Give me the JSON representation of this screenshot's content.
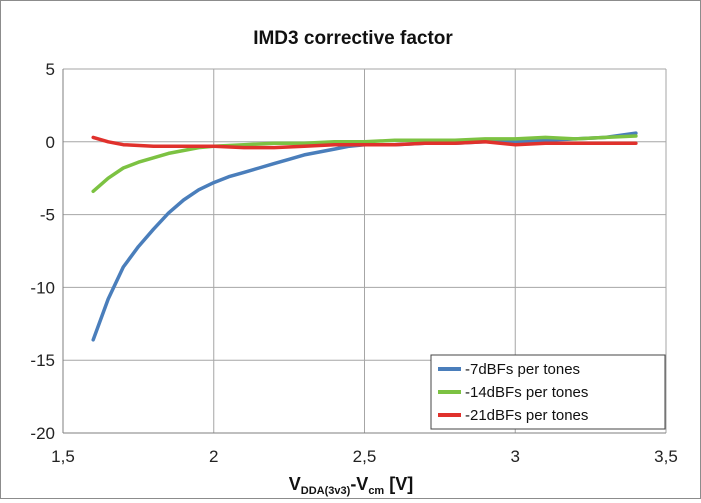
{
  "chart_data": {
    "type": "line",
    "title": "IMD3  corrective factor",
    "xlabel": {
      "main": "V",
      "sub1": "DDA(3v3)",
      "mid": "-V",
      "sub2": "cm",
      "unit": " [V]"
    },
    "ylabel": "",
    "xlim": [
      1.5,
      3.5
    ],
    "ylim": [
      -20,
      5
    ],
    "x_ticks": [
      1.5,
      2,
      2.5,
      3,
      3.5
    ],
    "x_tick_labels": [
      "1,5",
      "2",
      "2,5",
      "3",
      "3,5"
    ],
    "y_ticks": [
      5,
      0,
      -5,
      -10,
      -15,
      -20
    ],
    "y_tick_labels": [
      "5",
      "0",
      "-5",
      "-10",
      "-15",
      "-20"
    ],
    "grid": true,
    "legend_position": "bottom-right",
    "series": [
      {
        "name": "-7dBFs per tones",
        "color": "#4a7ebb",
        "x": [
          1.6,
          1.65,
          1.7,
          1.75,
          1.8,
          1.85,
          1.9,
          1.95,
          2.0,
          2.05,
          2.1,
          2.15,
          2.2,
          2.25,
          2.3,
          2.35,
          2.4,
          2.45,
          2.5,
          2.6,
          2.7,
          2.8,
          2.9,
          3.0,
          3.1,
          3.2,
          3.3,
          3.4
        ],
        "y": [
          -13.6,
          -10.8,
          -8.6,
          -7.2,
          -6.0,
          -4.9,
          -4.0,
          -3.3,
          -2.8,
          -2.4,
          -2.1,
          -1.8,
          -1.5,
          -1.2,
          -0.9,
          -0.7,
          -0.5,
          -0.3,
          -0.2,
          -0.2,
          -0.1,
          -0.1,
          0.0,
          0.0,
          0.1,
          0.2,
          0.3,
          0.6
        ]
      },
      {
        "name": "-14dBFs per tones",
        "color": "#7cc242",
        "x": [
          1.6,
          1.65,
          1.7,
          1.75,
          1.8,
          1.85,
          1.9,
          1.95,
          2.0,
          2.1,
          2.2,
          2.3,
          2.4,
          2.5,
          2.6,
          2.7,
          2.8,
          2.9,
          3.0,
          3.1,
          3.2,
          3.3,
          3.4
        ],
        "y": [
          -3.4,
          -2.5,
          -1.8,
          -1.4,
          -1.1,
          -0.8,
          -0.6,
          -0.4,
          -0.3,
          -0.2,
          -0.1,
          -0.1,
          0.0,
          0.0,
          0.1,
          0.1,
          0.1,
          0.2,
          0.2,
          0.3,
          0.2,
          0.3,
          0.4
        ]
      },
      {
        "name": "-21dBFs per tones",
        "color": "#e0312c",
        "x": [
          1.6,
          1.65,
          1.7,
          1.8,
          1.9,
          2.0,
          2.1,
          2.2,
          2.3,
          2.4,
          2.5,
          2.6,
          2.7,
          2.8,
          2.9,
          3.0,
          3.1,
          3.2,
          3.3,
          3.4
        ],
        "y": [
          0.3,
          0.0,
          -0.2,
          -0.3,
          -0.3,
          -0.3,
          -0.4,
          -0.4,
          -0.3,
          -0.2,
          -0.2,
          -0.2,
          -0.1,
          -0.1,
          0.0,
          -0.2,
          -0.1,
          -0.1,
          -0.1,
          -0.1
        ]
      }
    ]
  }
}
